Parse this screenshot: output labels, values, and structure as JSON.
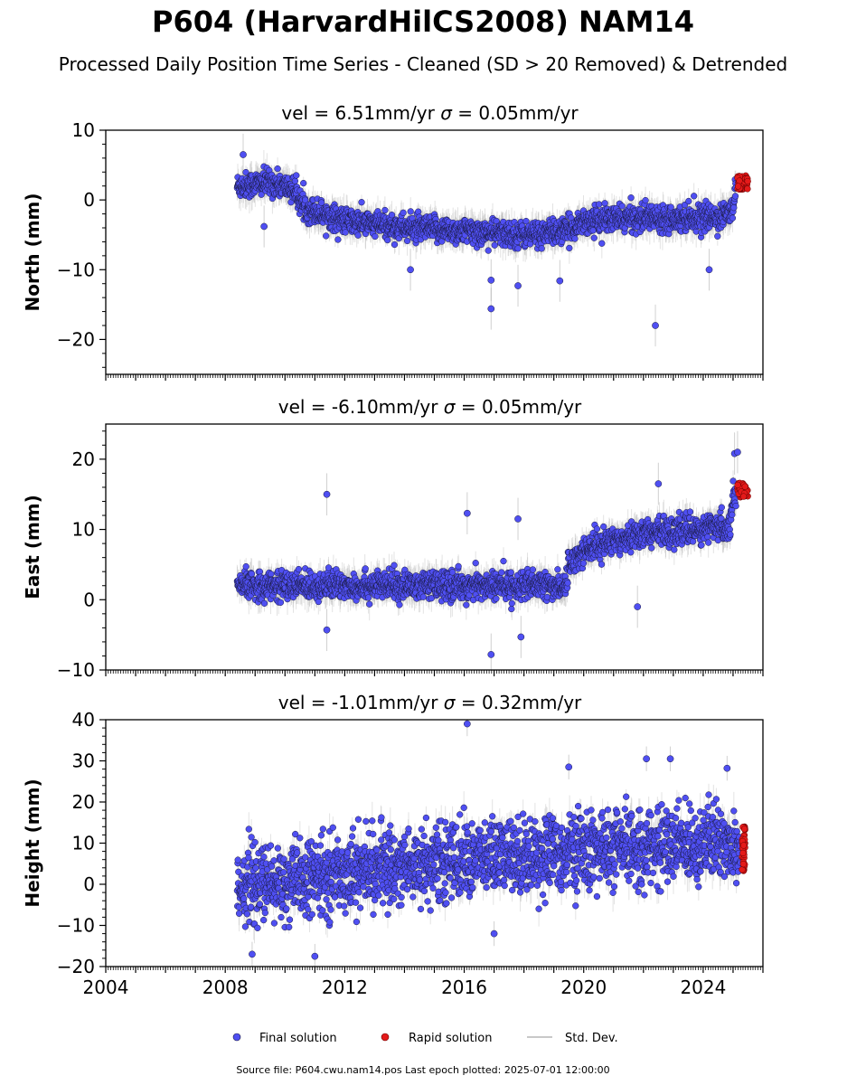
{
  "title": "P604 (HarvardHilCS2008) NAM14",
  "subtitle": "Processed Daily Position Time Series - Cleaned (SD > 20 Removed) & Detrended",
  "legend": {
    "final": "Final solution",
    "rapid": "Rapid solution",
    "std": "Std. Dev.",
    "placement": "bottom-center"
  },
  "footer": "Source file: P604.cwu.nam14.pos  Last epoch plotted: 2025-07-01 12:00:00",
  "colors": {
    "final_fill": "#4f4ff2",
    "final_edge": "#1a1a40",
    "rapid_fill": "#e41a1a",
    "std": "#b0b0b0",
    "axis": "#000000"
  },
  "chart_data": [
    {
      "type": "scatter",
      "panel": "north",
      "title": "vel = 6.51mm/yr   σ = 0.05mm/yr",
      "vel_text": "vel = 6.51mm/yr",
      "sigma_text": "= 0.05mm/yr",
      "ylabel": "North (mm)",
      "xlim": [
        2004,
        2026
      ],
      "ylim": [
        -25,
        10
      ],
      "yticks": [
        -20,
        -10,
        0,
        10
      ],
      "grid": false,
      "trend_points": [
        [
          2008.4,
          2
        ],
        [
          2009.5,
          2.5
        ],
        [
          2010.3,
          1.5
        ],
        [
          2010.6,
          -1
        ],
        [
          2012,
          -3
        ],
        [
          2014,
          -4
        ],
        [
          2016,
          -4.5
        ],
        [
          2018,
          -5
        ],
        [
          2019.4,
          -4.5
        ],
        [
          2020,
          -3
        ],
        [
          2022,
          -2.5
        ],
        [
          2024.5,
          -2.5
        ],
        [
          2025.0,
          -1.5
        ],
        [
          2025.1,
          2
        ]
      ],
      "noise": 1.2,
      "outliers": [
        [
          2016.9,
          -15.6
        ],
        [
          2022.4,
          -18
        ],
        [
          2017.8,
          -12.3
        ],
        [
          2016.9,
          -11.5
        ],
        [
          2019.2,
          -11.6
        ],
        [
          2024.2,
          -10
        ],
        [
          2014.2,
          -10
        ],
        [
          2009.3,
          -3.8
        ],
        [
          2008.6,
          6.5
        ]
      ],
      "rapid": {
        "x": [
          2025.15,
          2025.5
        ],
        "center": 2.5,
        "spread": 1.0
      }
    },
    {
      "type": "scatter",
      "panel": "east",
      "title": "vel = -6.10mm/yr   σ = 0.05mm/yr",
      "vel_text": "vel = -6.10mm/yr",
      "sigma_text": "= 0.05mm/yr",
      "ylabel": "East (mm)",
      "xlim": [
        2004,
        2026
      ],
      "ylim": [
        -10,
        25
      ],
      "yticks": [
        -10,
        0,
        10,
        20
      ],
      "grid": false,
      "trend_points": [
        [
          2008.4,
          2
        ],
        [
          2012,
          2
        ],
        [
          2016,
          2
        ],
        [
          2019.4,
          2
        ],
        [
          2019.5,
          5
        ],
        [
          2020,
          7
        ],
        [
          2021,
          8.5
        ],
        [
          2022,
          9.5
        ],
        [
          2024,
          10
        ],
        [
          2024.9,
          10.5
        ],
        [
          2025.0,
          15
        ],
        [
          2025.1,
          15.5
        ]
      ],
      "noise": 1.3,
      "outliers": [
        [
          2011.4,
          15
        ],
        [
          2016.1,
          12.3
        ],
        [
          2017.8,
          11.5
        ],
        [
          2016.9,
          -7.8
        ],
        [
          2017.9,
          -5.3
        ],
        [
          2011.4,
          -4.3
        ],
        [
          2021.8,
          -1
        ],
        [
          2025.05,
          20.8
        ],
        [
          2025.15,
          21
        ],
        [
          2022.5,
          16.5
        ]
      ],
      "rapid": {
        "x": [
          2025.15,
          2025.5
        ],
        "center": 15.6,
        "spread": 1.0
      }
    },
    {
      "type": "scatter",
      "panel": "height",
      "title": "vel = -1.01mm/yr   σ = 0.32mm/yr",
      "vel_text": "vel = -1.01mm/yr",
      "sigma_text": "= 0.32mm/yr",
      "ylabel": "Height (mm)",
      "xlabel": "",
      "xlim": [
        2004,
        2026
      ],
      "ylim": [
        -20,
        40
      ],
      "yticks": [
        -20,
        -10,
        0,
        10,
        20,
        30,
        40
      ],
      "xticks": [
        2004,
        2008,
        2012,
        2016,
        2020,
        2024
      ],
      "grid": false,
      "trend_points": [
        [
          2008.4,
          0
        ],
        [
          2010,
          0
        ],
        [
          2012,
          3
        ],
        [
          2016,
          6
        ],
        [
          2020,
          8
        ],
        [
          2024,
          10
        ],
        [
          2025.1,
          10
        ]
      ],
      "noise": 6,
      "outliers": [
        [
          2016.1,
          39
        ],
        [
          2022.9,
          30.5
        ],
        [
          2022.1,
          30.5
        ],
        [
          2019.5,
          28.5
        ],
        [
          2024.8,
          28.2
        ],
        [
          2011,
          -17.5
        ],
        [
          2008.9,
          -17
        ],
        [
          2017,
          -12
        ]
      ],
      "rapid": {
        "x": [
          2025.3,
          2025.4
        ],
        "center": 8.5,
        "spread": 5.5
      }
    }
  ]
}
